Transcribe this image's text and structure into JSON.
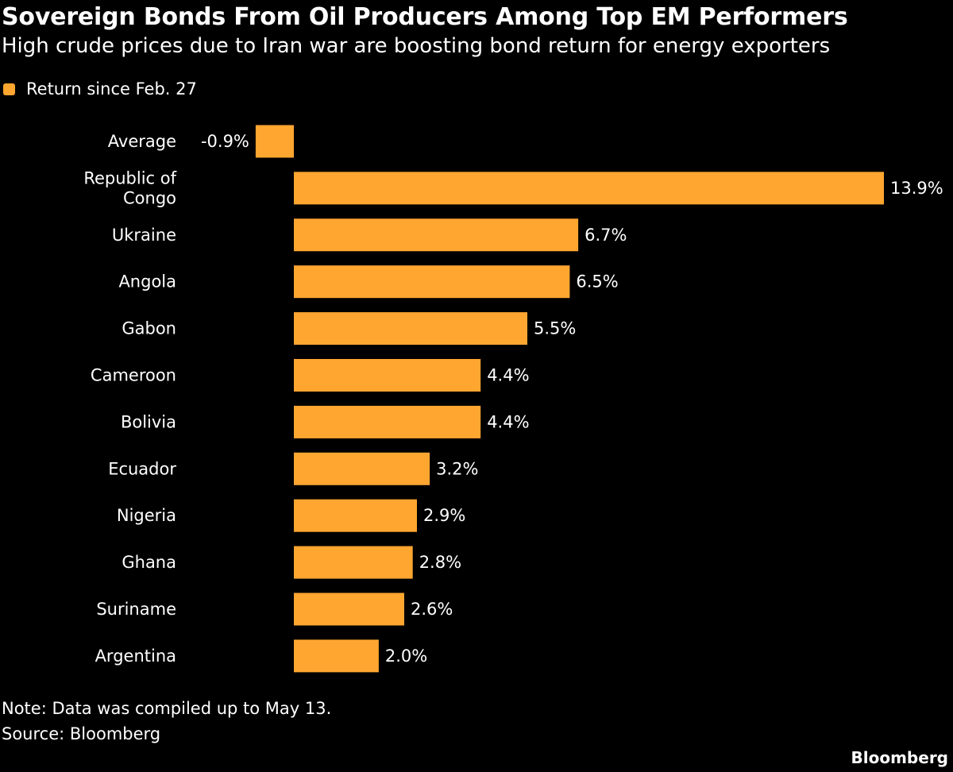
{
  "title": "Sovereign Bonds From Oil Producers Among Top EM Performers",
  "subtitle": "High crude prices due to Iran war are boosting bond return for energy exporters",
  "footer": {
    "note": "Note: Data was compiled up to May 13.",
    "source": "Source: Bloomberg",
    "brand": "Bloomberg"
  },
  "colors": {
    "background": "#000000",
    "bar": "#FFA630",
    "text": "#FFFFFF"
  },
  "chart_data": {
    "type": "bar",
    "orientation": "horizontal",
    "categories": [
      "Average",
      "Republic of Congo",
      "Ukraine",
      "Angola",
      "Gabon",
      "Cameroon",
      "Bolivia",
      "Ecuador",
      "Nigeria",
      "Ghana",
      "Suriname",
      "Argentina"
    ],
    "series": [
      {
        "name": "Return since Feb. 27",
        "values": [
          -0.9,
          13.9,
          6.7,
          6.5,
          5.5,
          4.4,
          4.4,
          3.2,
          2.9,
          2.8,
          2.6,
          2.0
        ],
        "labels": [
          "-0.9%",
          "13.9%",
          "6.7%",
          "6.5%",
          "5.5%",
          "4.4%",
          "4.4%",
          "3.2%",
          "2.9%",
          "2.8%",
          "2.6%",
          "2.0%"
        ]
      }
    ],
    "unit": "%",
    "legend": "top-left",
    "grid": false
  }
}
